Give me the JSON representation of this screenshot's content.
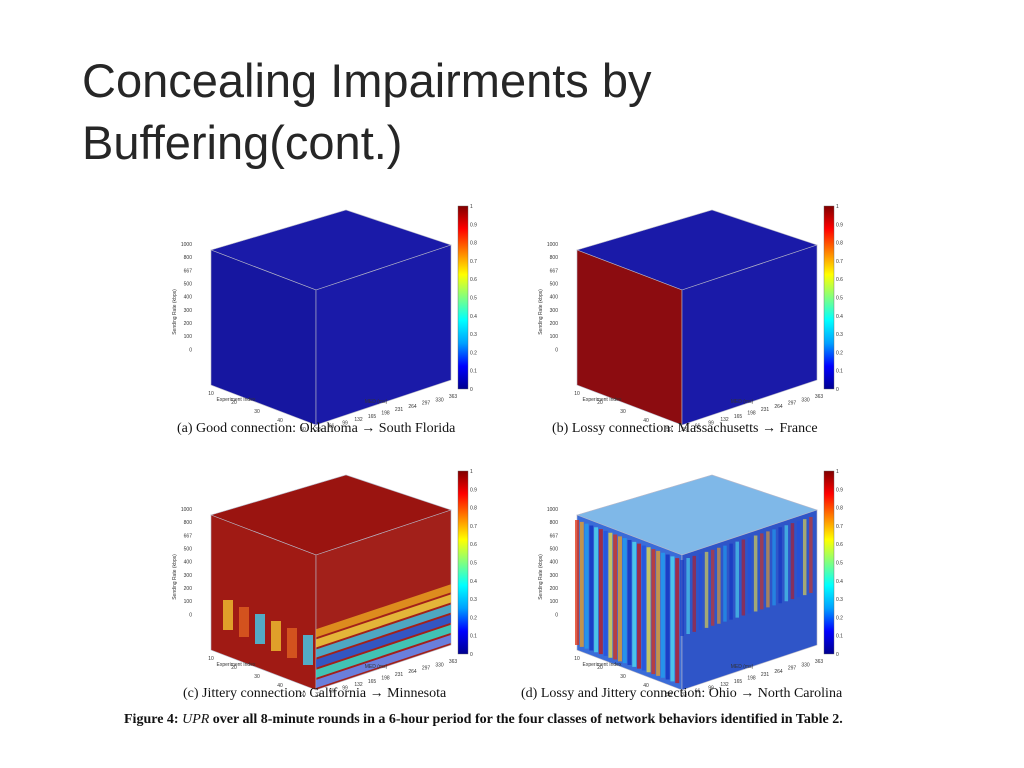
{
  "slide": {
    "title_line1": "Concealing Impairments by",
    "title_line2": "Buffering(cont.)"
  },
  "figure": {
    "caption_prefix": "Figure 4:",
    "caption_var": "UPR",
    "caption_text": "over all 8-minute rounds in a 6-hour period for the four classes of network behaviors identified in Table 2.",
    "panels": [
      {
        "id": "a",
        "caption": "(a) Good connection: Oklahoma → South Florida",
        "pattern": "uniform-low"
      },
      {
        "id": "b",
        "caption": "(b) Lossy connection: Massachusetts → France",
        "pattern": "left-face-high"
      },
      {
        "id": "c",
        "caption": "(c) Jittery connection: California → Minnesota",
        "pattern": "top-high-bands"
      },
      {
        "id": "d",
        "caption": "(d) Lossy and Jittery connection: Ohio → North Carolina",
        "pattern": "stripes"
      }
    ],
    "axes": {
      "ylabel": "Sending Rate (kbps)",
      "xlabel": "Experiment Index",
      "zlabel": "MED (ms)",
      "y_ticks": [
        "1000",
        "800",
        "667",
        "500",
        "400",
        "300",
        "200",
        "100",
        "0"
      ],
      "x_ticks": [
        "10",
        "20",
        "30",
        "40",
        "50"
      ],
      "z_ticks": [
        "33",
        "66",
        "99",
        "132",
        "165",
        "198",
        "231",
        "264",
        "297",
        "330",
        "363"
      ]
    },
    "colorbar": {
      "ticks": [
        "1",
        "0.9",
        "0.8",
        "0.7",
        "0.6",
        "0.5",
        "0.4",
        "0.3",
        "0.2",
        "0.1",
        "0"
      ],
      "colors": [
        "#00008f",
        "#0000ff",
        "#00a0ff",
        "#00ffff",
        "#80ff80",
        "#ffff00",
        "#ff8000",
        "#ff0000",
        "#800000"
      ]
    }
  }
}
